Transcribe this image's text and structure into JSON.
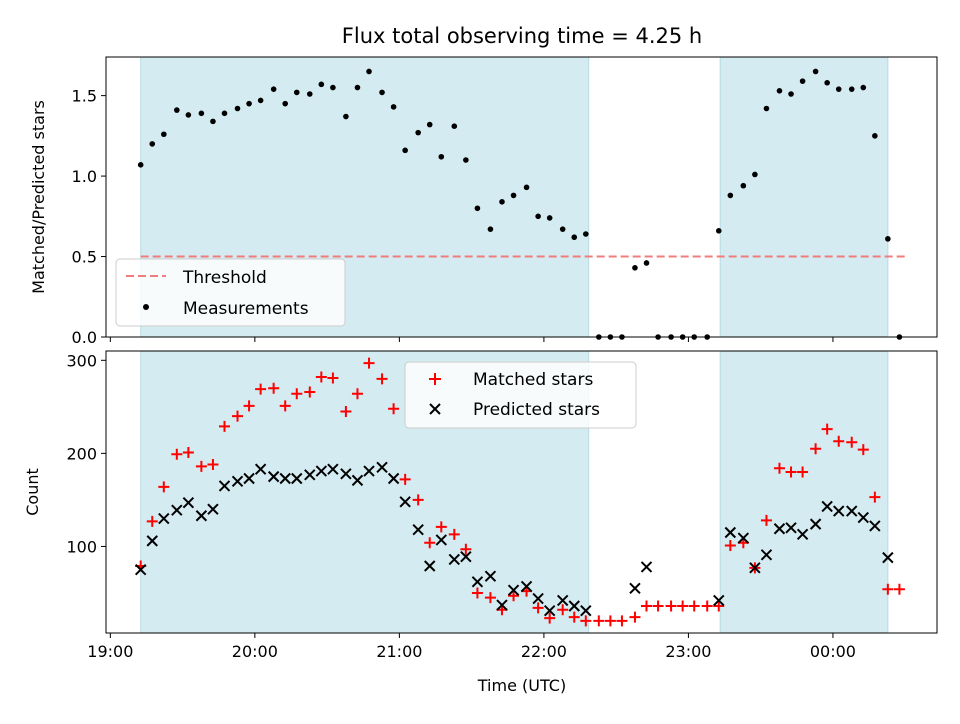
{
  "chart_data": {
    "type": "scatter",
    "title": "Flux total observing time = 4.25 h",
    "xlabel": "Time (UTC)",
    "x_ticks": [
      {
        "t": 19.0,
        "label": "19:00"
      },
      {
        "t": 20.0,
        "label": "20:00"
      },
      {
        "t": 21.0,
        "label": "21:00"
      },
      {
        "t": 22.0,
        "label": "22:00"
      },
      {
        "t": 23.0,
        "label": "23:00"
      },
      {
        "t": 24.0,
        "label": "00:00"
      }
    ],
    "xlim": [
      18.97,
      24.72
    ],
    "observing_windows": [
      [
        19.21,
        22.31
      ],
      [
        23.22,
        24.38
      ]
    ],
    "window_color": "#d4ebf1",
    "top": {
      "ylabel": "Matched/Predicted stars",
      "ylim": [
        0,
        1.74
      ],
      "y_ticks": [
        0.0,
        0.5,
        1.0,
        1.5
      ],
      "threshold": {
        "name": "Threshold",
        "value": 0.5,
        "x_range": [
          19.21,
          24.5
        ],
        "color": "#f07c7c"
      },
      "measurements": {
        "name": "Measurements",
        "color": "#000000",
        "points": [
          [
            19.21,
            1.07
          ],
          [
            19.29,
            1.2
          ],
          [
            19.37,
            1.26
          ],
          [
            19.46,
            1.41
          ],
          [
            19.54,
            1.38
          ],
          [
            19.63,
            1.39
          ],
          [
            19.71,
            1.34
          ],
          [
            19.79,
            1.39
          ],
          [
            19.88,
            1.42
          ],
          [
            19.96,
            1.45
          ],
          [
            20.04,
            1.47
          ],
          [
            20.13,
            1.54
          ],
          [
            20.21,
            1.45
          ],
          [
            20.29,
            1.52
          ],
          [
            20.38,
            1.51
          ],
          [
            20.46,
            1.57
          ],
          [
            20.54,
            1.55
          ],
          [
            20.63,
            1.37
          ],
          [
            20.71,
            1.55
          ],
          [
            20.79,
            1.65
          ],
          [
            20.88,
            1.52
          ],
          [
            20.96,
            1.43
          ],
          [
            21.04,
            1.16
          ],
          [
            21.13,
            1.27
          ],
          [
            21.21,
            1.32
          ],
          [
            21.29,
            1.12
          ],
          [
            21.38,
            1.31
          ],
          [
            21.46,
            1.1
          ],
          [
            21.54,
            0.8
          ],
          [
            21.63,
            0.67
          ],
          [
            21.71,
            0.84
          ],
          [
            21.79,
            0.88
          ],
          [
            21.88,
            0.93
          ],
          [
            21.96,
            0.75
          ],
          [
            22.04,
            0.74
          ],
          [
            22.13,
            0.67
          ],
          [
            22.21,
            0.62
          ],
          [
            22.29,
            0.64
          ],
          [
            22.38,
            0.0
          ],
          [
            22.46,
            0.0
          ],
          [
            22.54,
            0.0
          ],
          [
            22.63,
            0.43
          ],
          [
            22.71,
            0.46
          ],
          [
            22.79,
            0.0
          ],
          [
            22.88,
            0.0
          ],
          [
            22.96,
            0.0
          ],
          [
            23.04,
            0.0
          ],
          [
            23.13,
            0.0
          ],
          [
            23.21,
            0.66
          ],
          [
            23.29,
            0.88
          ],
          [
            23.38,
            0.94
          ],
          [
            23.46,
            1.01
          ],
          [
            23.54,
            1.42
          ],
          [
            23.63,
            1.53
          ],
          [
            23.71,
            1.51
          ],
          [
            23.79,
            1.59
          ],
          [
            23.88,
            1.65
          ],
          [
            23.96,
            1.58
          ],
          [
            24.04,
            1.54
          ],
          [
            24.13,
            1.54
          ],
          [
            24.21,
            1.55
          ],
          [
            24.29,
            1.25
          ],
          [
            24.38,
            0.61
          ],
          [
            24.46,
            0.0
          ]
        ]
      }
    },
    "bottom": {
      "ylabel": "Count",
      "ylim": [
        7,
        310
      ],
      "y_ticks": [
        100,
        200,
        300
      ],
      "matched": {
        "name": "Matched stars",
        "color": "#ff0000",
        "points": [
          [
            19.21,
            79
          ],
          [
            19.29,
            127
          ],
          [
            19.37,
            164
          ],
          [
            19.46,
            199
          ],
          [
            19.54,
            201
          ],
          [
            19.63,
            186
          ],
          [
            19.71,
            188
          ],
          [
            19.79,
            229
          ],
          [
            19.88,
            240
          ],
          [
            19.96,
            251
          ],
          [
            20.04,
            269
          ],
          [
            20.13,
            270
          ],
          [
            20.21,
            251
          ],
          [
            20.29,
            264
          ],
          [
            20.38,
            266
          ],
          [
            20.46,
            282
          ],
          [
            20.54,
            281
          ],
          [
            20.63,
            245
          ],
          [
            20.71,
            264
          ],
          [
            20.79,
            297
          ],
          [
            20.88,
            280
          ],
          [
            20.96,
            248
          ],
          [
            21.04,
            172
          ],
          [
            21.13,
            150
          ],
          [
            21.21,
            104
          ],
          [
            21.29,
            121
          ],
          [
            21.38,
            113
          ],
          [
            21.46,
            97
          ],
          [
            21.54,
            50
          ],
          [
            21.63,
            45
          ],
          [
            21.71,
            32
          ],
          [
            21.79,
            47
          ],
          [
            21.88,
            52
          ],
          [
            21.96,
            34
          ],
          [
            22.04,
            23
          ],
          [
            22.13,
            32
          ],
          [
            22.21,
            24
          ],
          [
            22.29,
            20
          ],
          [
            22.38,
            20
          ],
          [
            22.46,
            20
          ],
          [
            22.54,
            20
          ],
          [
            22.63,
            24
          ],
          [
            22.71,
            36
          ],
          [
            22.79,
            36
          ],
          [
            22.88,
            36
          ],
          [
            22.96,
            36
          ],
          [
            23.04,
            36
          ],
          [
            23.13,
            36
          ],
          [
            23.21,
            36
          ],
          [
            23.29,
            101
          ],
          [
            23.38,
            104
          ],
          [
            23.46,
            77
          ],
          [
            23.54,
            128
          ],
          [
            23.63,
            184
          ],
          [
            23.71,
            180
          ],
          [
            23.79,
            180
          ],
          [
            23.88,
            205
          ],
          [
            23.96,
            226
          ],
          [
            24.04,
            213
          ],
          [
            24.13,
            212
          ],
          [
            24.21,
            204
          ],
          [
            24.29,
            153
          ],
          [
            24.38,
            54
          ],
          [
            24.46,
            54
          ]
        ]
      },
      "predicted": {
        "name": "Predicted stars",
        "color": "#000000",
        "points": [
          [
            19.21,
            75
          ],
          [
            19.29,
            106
          ],
          [
            19.37,
            130
          ],
          [
            19.46,
            139
          ],
          [
            19.54,
            147
          ],
          [
            19.63,
            133
          ],
          [
            19.71,
            140
          ],
          [
            19.79,
            165
          ],
          [
            19.88,
            170
          ],
          [
            19.96,
            173
          ],
          [
            20.04,
            183
          ],
          [
            20.13,
            175
          ],
          [
            20.21,
            173
          ],
          [
            20.29,
            173
          ],
          [
            20.38,
            177
          ],
          [
            20.46,
            181
          ],
          [
            20.54,
            183
          ],
          [
            20.63,
            178
          ],
          [
            20.71,
            171
          ],
          [
            20.79,
            181
          ],
          [
            20.88,
            185
          ],
          [
            20.96,
            173
          ],
          [
            21.04,
            148
          ],
          [
            21.13,
            118
          ],
          [
            21.21,
            79
          ],
          [
            21.29,
            107
          ],
          [
            21.38,
            86
          ],
          [
            21.46,
            89
          ],
          [
            21.54,
            62
          ],
          [
            21.63,
            68
          ],
          [
            21.71,
            37
          ],
          [
            21.79,
            53
          ],
          [
            21.88,
            57
          ],
          [
            21.96,
            44
          ],
          [
            22.04,
            31
          ],
          [
            22.13,
            42
          ],
          [
            22.21,
            36
          ],
          [
            22.29,
            31
          ],
          [
            22.63,
            55
          ],
          [
            22.71,
            78
          ],
          [
            23.21,
            42
          ],
          [
            23.29,
            115
          ],
          [
            23.38,
            109
          ],
          [
            23.46,
            77
          ],
          [
            23.54,
            91
          ],
          [
            23.63,
            119
          ],
          [
            23.71,
            120
          ],
          [
            23.79,
            113
          ],
          [
            23.88,
            124
          ],
          [
            23.96,
            143
          ],
          [
            24.04,
            138
          ],
          [
            24.13,
            138
          ],
          [
            24.21,
            131
          ],
          [
            24.29,
            122
          ],
          [
            24.38,
            88
          ]
        ]
      }
    }
  }
}
